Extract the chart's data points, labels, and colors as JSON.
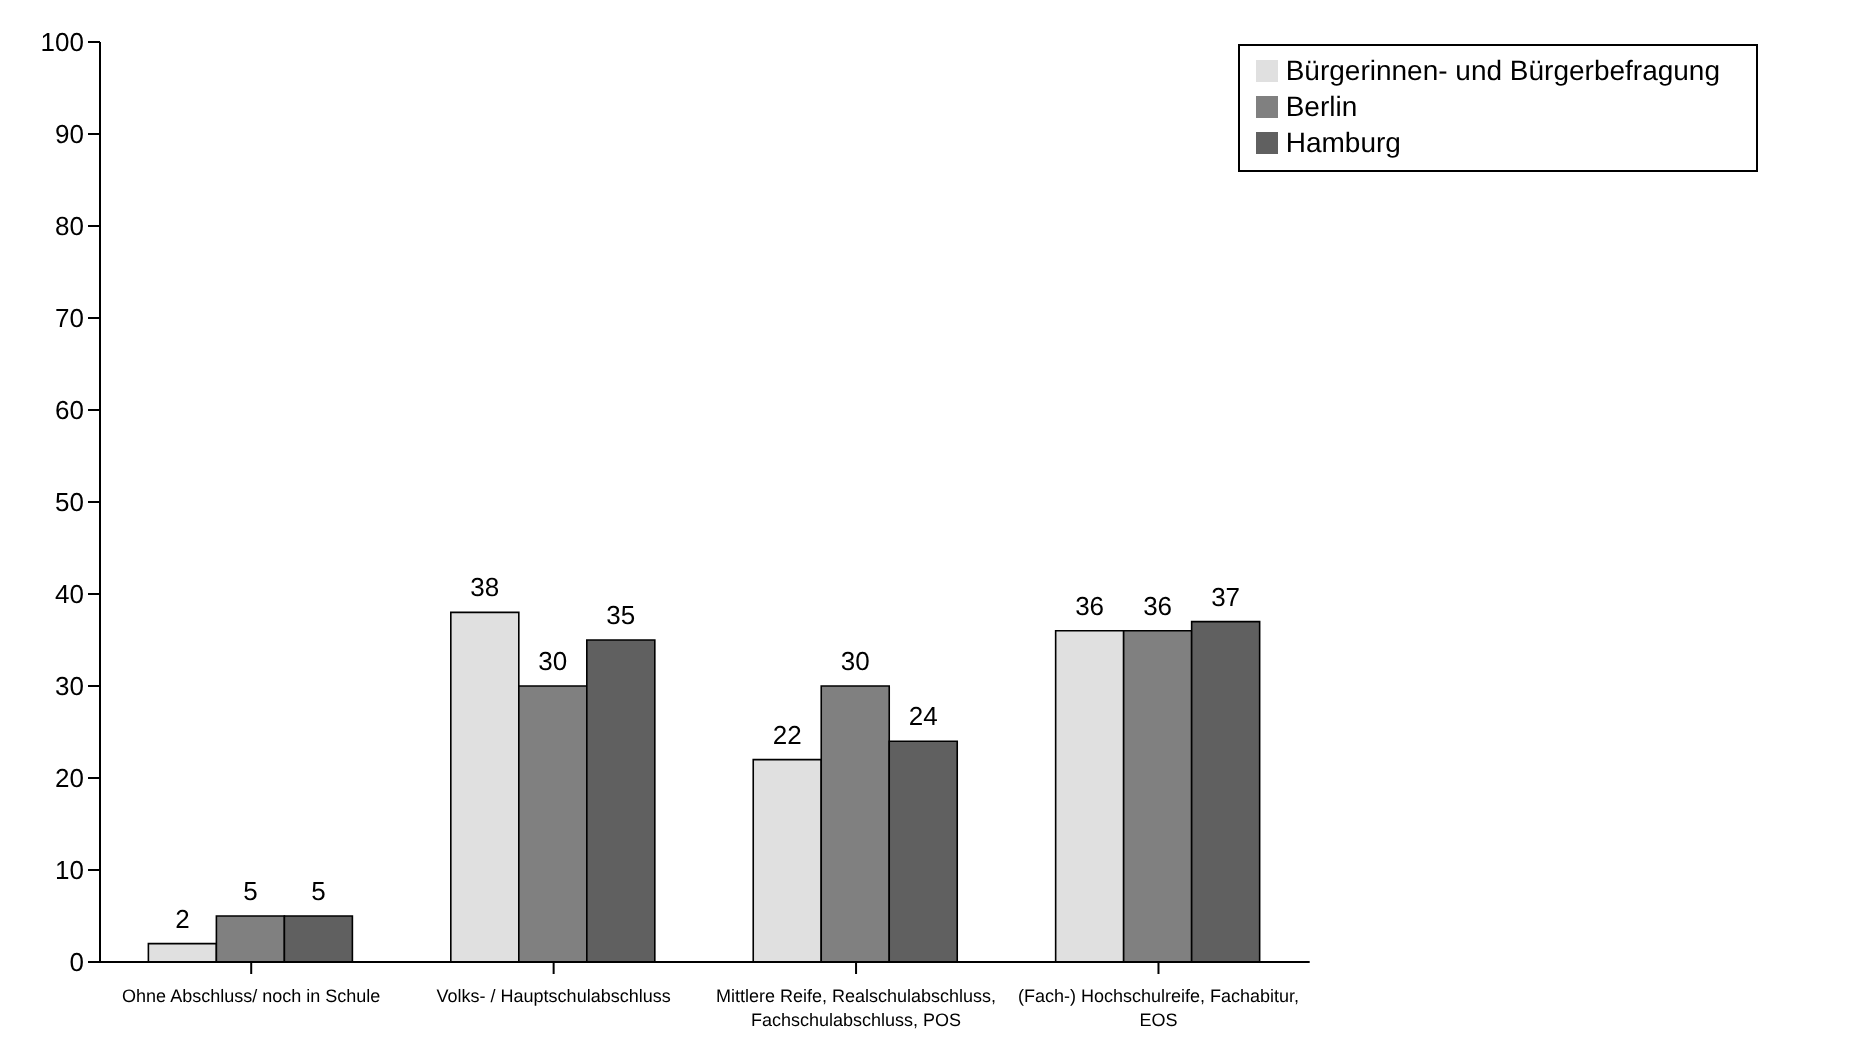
{
  "chart_data": {
    "type": "bar",
    "categories": [
      "Ohne Abschluss/ noch in Schule",
      "Volks- / Hauptschulabschluss",
      "Mittlere Reife, Realschulabschluss, Fachschulabschluss, POS",
      "(Fach-) Hochschulreife, Fachabitur, EOS"
    ],
    "series": [
      {
        "name": "Bürgerinnen- und Bürgerbefragung",
        "color": "#e0e0e0",
        "values": [
          2,
          38,
          22,
          36
        ]
      },
      {
        "name": "Berlin",
        "color": "#808080",
        "values": [
          5,
          30,
          30,
          36
        ]
      },
      {
        "name": "Hamburg",
        "color": "#606060",
        "values": [
          5,
          35,
          24,
          37
        ]
      }
    ],
    "ylim": [
      0,
      100
    ],
    "yticks": [
      0,
      10,
      20,
      30,
      40,
      50,
      60,
      70,
      80,
      90,
      100
    ],
    "data_labels": true,
    "legend": "top right",
    "grid": false
  }
}
